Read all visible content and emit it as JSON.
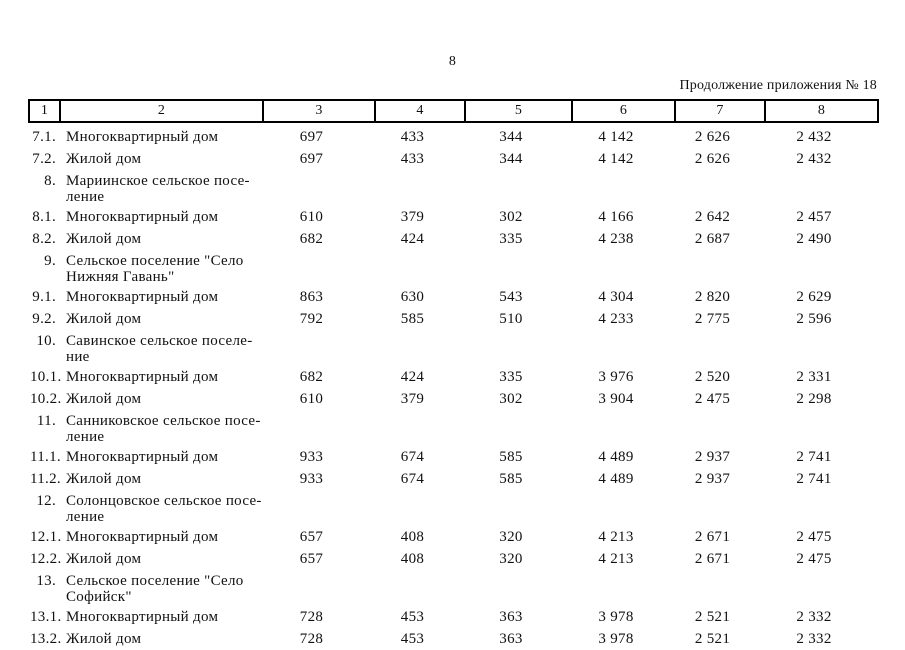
{
  "page": {
    "number": "8",
    "continuation_note": "Продолжение приложения № 18"
  },
  "table": {
    "header_cols": [
      "1",
      "2",
      "3",
      "4",
      "5",
      "6",
      "7",
      "8"
    ],
    "rows": [
      {
        "type": "item",
        "num": "7.1.",
        "label": "Многоквартирный дом",
        "values": [
          "697",
          "433",
          "344",
          "4 142",
          "2 626",
          "2 432"
        ]
      },
      {
        "type": "item",
        "num": "7.2.",
        "label": "Жилой дом",
        "values": [
          "697",
          "433",
          "344",
          "4 142",
          "2 626",
          "2 432"
        ]
      },
      {
        "type": "section",
        "num": "8.",
        "label": "Мариинское сельское посе-\nление",
        "values": [
          "",
          "",
          "",
          "",
          "",
          ""
        ]
      },
      {
        "type": "item",
        "num": "8.1.",
        "label": "Многоквартирный дом",
        "values": [
          "610",
          "379",
          "302",
          "4 166",
          "2 642",
          "2 457"
        ]
      },
      {
        "type": "item",
        "num": "8.2.",
        "label": "Жилой дом",
        "values": [
          "682",
          "424",
          "335",
          "4 238",
          "2 687",
          "2 490"
        ]
      },
      {
        "type": "section",
        "num": "9.",
        "label": "Сельское поселение \"Село\nНижняя Гавань\"",
        "values": [
          "",
          "",
          "",
          "",
          "",
          ""
        ]
      },
      {
        "type": "item",
        "num": "9.1.",
        "label": "Многоквартирный дом",
        "values": [
          "863",
          "630",
          "543",
          "4 304",
          "2 820",
          "2 629"
        ]
      },
      {
        "type": "item",
        "num": "9.2.",
        "label": "Жилой дом",
        "values": [
          "792",
          "585",
          "510",
          "4 233",
          "2 775",
          "2 596"
        ]
      },
      {
        "type": "section",
        "num": "10.",
        "label": "Савинское сельское поселе-\nние",
        "values": [
          "",
          "",
          "",
          "",
          "",
          ""
        ]
      },
      {
        "type": "item",
        "num": "10.1.",
        "label": "Многоквартирный дом",
        "values": [
          "682",
          "424",
          "335",
          "3 976",
          "2 520",
          "2 331"
        ]
      },
      {
        "type": "item",
        "num": "10.2.",
        "label": "Жилой дом",
        "values": [
          "610",
          "379",
          "302",
          "3 904",
          "2 475",
          "2 298"
        ]
      },
      {
        "type": "section",
        "num": "11.",
        "label": "Санниковское сельское посе-\nление",
        "values": [
          "",
          "",
          "",
          "",
          "",
          ""
        ]
      },
      {
        "type": "item",
        "num": "11.1.",
        "label": "Многоквартирный дом",
        "values": [
          "933",
          "674",
          "585",
          "4 489",
          "2 937",
          "2 741"
        ]
      },
      {
        "type": "item",
        "num": "11.2.",
        "label": "Жилой дом",
        "values": [
          "933",
          "674",
          "585",
          "4 489",
          "2 937",
          "2 741"
        ]
      },
      {
        "type": "section",
        "num": "12.",
        "label": "Солонцовское сельское посе-\nление",
        "values": [
          "",
          "",
          "",
          "",
          "",
          ""
        ]
      },
      {
        "type": "item",
        "num": "12.1.",
        "label": "Многоквартирный дом",
        "values": [
          "657",
          "408",
          "320",
          "4 213",
          "2 671",
          "2 475"
        ]
      },
      {
        "type": "item",
        "num": "12.2.",
        "label": "Жилой дом",
        "values": [
          "657",
          "408",
          "320",
          "4 213",
          "2 671",
          "2 475"
        ]
      },
      {
        "type": "section",
        "num": "13.",
        "label": "Сельское поселение \"Село\nСофийск\"",
        "values": [
          "",
          "",
          "",
          "",
          "",
          ""
        ]
      },
      {
        "type": "item",
        "num": "13.1.",
        "label": "Многоквартирный дом",
        "values": [
          "728",
          "453",
          "363",
          "3 978",
          "2 521",
          "2 332"
        ]
      },
      {
        "type": "item",
        "num": "13.2.",
        "label": "Жилой дом",
        "values": [
          "728",
          "453",
          "363",
          "3 978",
          "2 521",
          "2 332"
        ]
      }
    ]
  }
}
